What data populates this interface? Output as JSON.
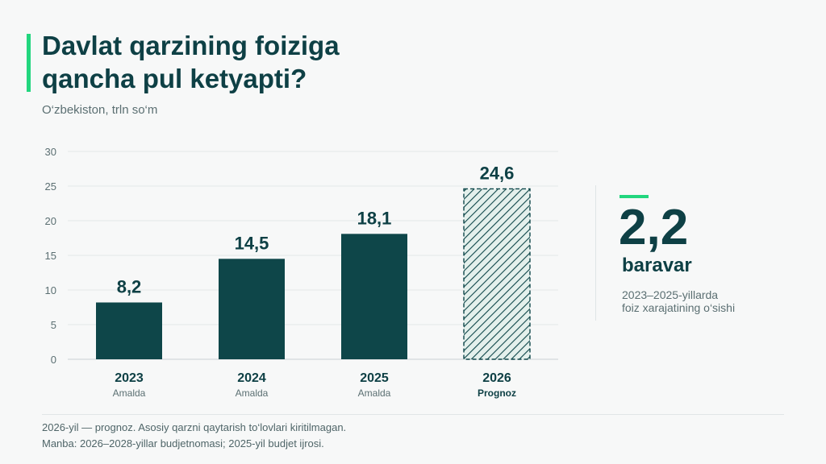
{
  "header": {
    "title_lines": [
      "Davlat qarzining foiziga",
      "qancha pul ketyapti?"
    ],
    "subtitle": "O‘zbekiston, trln so‘m"
  },
  "colors": {
    "accent": "#22d67e",
    "bar": "#0e4649",
    "forecast_fill": "#e4f0ec",
    "text_dark": "#0e4045",
    "text_muted": "#5b6f72",
    "grid": "#e3e7e8"
  },
  "chart_data": {
    "type": "bar",
    "categories": [
      "2023",
      "2024",
      "2025",
      "2026"
    ],
    "sublabels": [
      "Amalda",
      "Amalda",
      "Amalda",
      "Prognoz"
    ],
    "values": [
      8.2,
      14.5,
      18.1,
      24.6
    ],
    "value_labels": [
      "8,2",
      "14,5",
      "18,1",
      "24,6"
    ],
    "forecast": [
      false,
      false,
      false,
      true
    ],
    "ylim": [
      0,
      30
    ],
    "yticks": [
      0,
      5,
      10,
      15,
      20,
      25,
      30
    ],
    "grid": true,
    "xlabel": "",
    "ylabel": ""
  },
  "callout": {
    "value": "2,2",
    "unit": "baravar",
    "desc_lines": [
      "2023–2025-yillarda",
      "foiz xarajatining o‘sishi"
    ]
  },
  "footer": {
    "note": "2026-yil — prognoz. Asosiy qarzni qaytarish to‘lovlari kiritilmagan.",
    "source": "Manba: 2026–2028-yillar budjetnomasi; 2025-yil budjet ijrosi."
  }
}
